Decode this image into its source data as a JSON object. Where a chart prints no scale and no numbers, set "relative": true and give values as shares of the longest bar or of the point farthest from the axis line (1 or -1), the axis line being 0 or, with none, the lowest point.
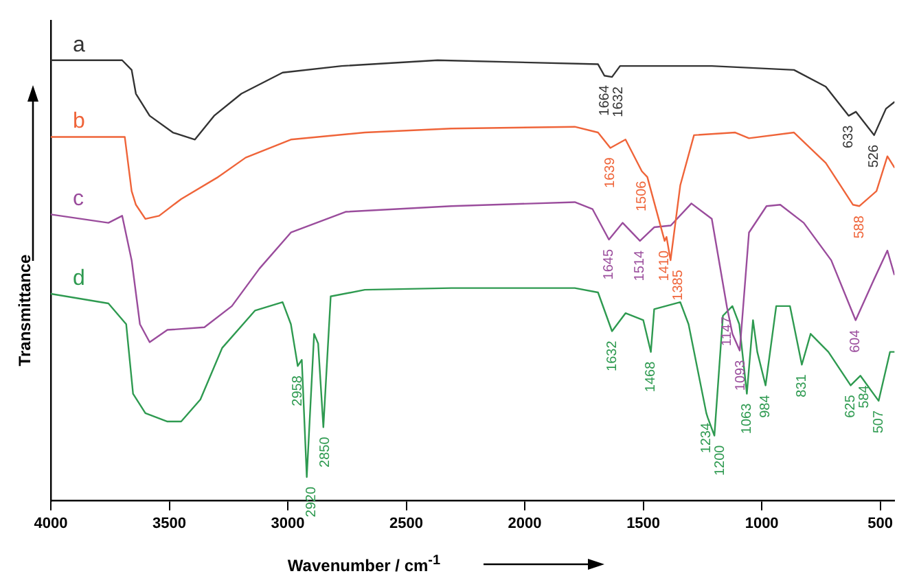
{
  "chart_data": {
    "type": "line",
    "relative": true,
    "xlabel": "Wavenumber / cm$^{-1}$",
    "ylabel": "Transmittance",
    "xlim": [
      4000,
      440
    ],
    "xticks": [
      4000,
      3500,
      3000,
      2500,
      2000,
      1500,
      1000,
      500
    ],
    "grid": false,
    "legend": false,
    "marker": "none",
    "line_style": "solid",
    "series": [
      {
        "name": "a",
        "color": "#333333",
        "x": [
          4000,
          3699,
          3659,
          3641,
          3583,
          3485,
          3392,
          3311,
          3196,
          3022,
          2773,
          2368,
          1691,
          1664,
          1632,
          1598,
          1211,
          864,
          730,
          633,
          603,
          526,
          476,
          441
        ],
        "values": [
          1.0,
          1.0,
          0.978,
          0.924,
          0.874,
          0.836,
          0.82,
          0.874,
          0.924,
          0.972,
          0.987,
          1.0,
          0.991,
          0.965,
          0.962,
          0.987,
          0.987,
          0.978,
          0.94,
          0.874,
          0.883,
          0.83,
          0.89,
          0.905
        ]
      },
      {
        "name": "b",
        "color": "#ef6439",
        "x": [
          4000,
          3688,
          3659,
          3641,
          3601,
          3543,
          3450,
          3294,
          3178,
          2987,
          2675,
          2310,
          1789,
          1691,
          1639,
          1575,
          1506,
          1483,
          1410,
          1402,
          1385,
          1344,
          1286,
          1112,
          1054,
          864,
          730,
          615,
          588,
          516,
          470,
          441
        ],
        "values": [
          0.826,
          0.826,
          0.703,
          0.672,
          0.64,
          0.647,
          0.685,
          0.735,
          0.779,
          0.82,
          0.836,
          0.845,
          0.849,
          0.836,
          0.801,
          0.82,
          0.748,
          0.735,
          0.59,
          0.599,
          0.546,
          0.716,
          0.83,
          0.836,
          0.823,
          0.836,
          0.767,
          0.672,
          0.669,
          0.703,
          0.782,
          0.757
        ]
      },
      {
        "name": "c",
        "color": "#9a4c9c",
        "x": [
          4000,
          3757,
          3699,
          3659,
          3624,
          3583,
          3508,
          3352,
          3236,
          3120,
          2987,
          2756,
          2310,
          1789,
          1714,
          1645,
          1587,
          1514,
          1454,
          1384,
          1297,
          1211,
          1147,
          1124,
          1093,
          1054,
          980,
          922,
          823,
          707,
          604,
          533,
          470,
          441
        ],
        "values": [
          0.65,
          0.631,
          0.647,
          0.546,
          0.401,
          0.36,
          0.388,
          0.394,
          0.442,
          0.527,
          0.609,
          0.656,
          0.669,
          0.678,
          0.662,
          0.593,
          0.631,
          0.59,
          0.621,
          0.625,
          0.675,
          0.64,
          0.44,
          0.379,
          0.341,
          0.609,
          0.669,
          0.672,
          0.631,
          0.546,
          0.41,
          0.495,
          0.568,
          0.514
        ]
      },
      {
        "name": "d",
        "color": "#2e9a50",
        "x": [
          4000,
          3757,
          3682,
          3653,
          3601,
          3508,
          3450,
          3369,
          3277,
          3138,
          3022,
          2987,
          2958,
          2941,
          2920,
          2889,
          2872,
          2850,
          2819,
          2675,
          2310,
          1789,
          1691,
          1632,
          1575,
          1500,
          1468,
          1454,
          1344,
          1309,
          1234,
          1228,
          1200,
          1164,
          1124,
          1095,
          1063,
          1037,
          1019,
          984,
          939,
          881,
          831,
          794,
          719,
          625,
          584,
          507,
          459,
          441
        ],
        "values": [
          0.47,
          0.448,
          0.401,
          0.243,
          0.199,
          0.18,
          0.18,
          0.23,
          0.347,
          0.432,
          0.451,
          0.401,
          0.306,
          0.32,
          0.054,
          0.379,
          0.357,
          0.167,
          0.464,
          0.479,
          0.483,
          0.483,
          0.473,
          0.385,
          0.426,
          0.41,
          0.338,
          0.435,
          0.451,
          0.401,
          0.199,
          0.189,
          0.148,
          0.42,
          0.442,
          0.401,
          0.243,
          0.41,
          0.338,
          0.262,
          0.442,
          0.442,
          0.309,
          0.379,
          0.338,
          0.262,
          0.284,
          0.227,
          0.338,
          0.338
        ]
      }
    ],
    "annotations": [
      {
        "text": "1664",
        "x": 1664,
        "y": 0.965
      },
      {
        "text": "1632",
        "x": 1632,
        "y": 0.962
      },
      {
        "text": "633",
        "x": 633,
        "y": 0.874
      },
      {
        "text": "526",
        "x": 526,
        "y": 0.83
      },
      {
        "text": "1639",
        "x": 1639,
        "y": 0.801
      },
      {
        "text": "1506",
        "x": 1506,
        "y": 0.748
      },
      {
        "text": "1410",
        "x": 1410,
        "y": 0.59
      },
      {
        "text": "1385",
        "x": 1385,
        "y": 0.546
      },
      {
        "text": "588",
        "x": 588,
        "y": 0.669
      },
      {
        "text": "1645",
        "x": 1645,
        "y": 0.593
      },
      {
        "text": "1514",
        "x": 1514,
        "y": 0.59
      },
      {
        "text": "1147",
        "x": 1147,
        "y": 0.44
      },
      {
        "text": "1093",
        "x": 1093,
        "y": 0.341
      },
      {
        "text": "604",
        "x": 604,
        "y": 0.41
      },
      {
        "text": "2958",
        "x": 2958,
        "y": 0.306
      },
      {
        "text": "2920",
        "x": 2920,
        "y": 0.054
      },
      {
        "text": "2850",
        "x": 2850,
        "y": 0.167
      },
      {
        "text": "1632",
        "x": 1632,
        "y": 0.385
      },
      {
        "text": "1468",
        "x": 1468,
        "y": 0.338
      },
      {
        "text": "1234",
        "x": 1234,
        "y": 0.199
      },
      {
        "text": "1200",
        "x": 1200,
        "y": 0.148
      },
      {
        "text": "1063",
        "x": 1063,
        "y": 0.243
      },
      {
        "text": "984",
        "x": 984,
        "y": 0.262
      },
      {
        "text": "831",
        "x": 831,
        "y": 0.309
      },
      {
        "text": "625",
        "x": 625,
        "y": 0.262
      },
      {
        "text": "584",
        "x": 584,
        "y": 0.284
      },
      {
        "text": "507",
        "x": 507,
        "y": 0.227
      }
    ]
  }
}
